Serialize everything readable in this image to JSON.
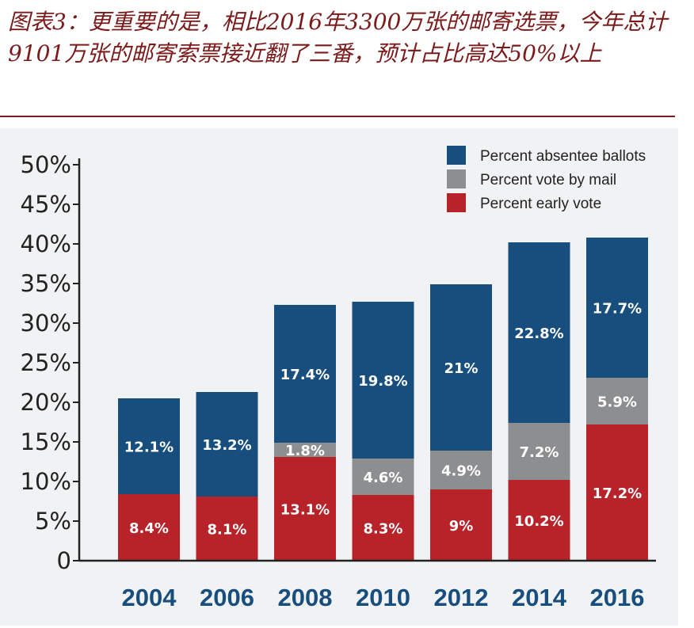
{
  "caption": "图表3：更重要的是，相比2016年3300万张的邮寄选票，今年总计9101万张的邮寄索票接近翻了三番，预计占比高达50%以上",
  "colors": {
    "absentee": "#174e7d",
    "mail": "#8d8e90",
    "early": "#b8232a",
    "axis": "#222222",
    "year": "#174e7d",
    "caption": "#7a1a1a"
  },
  "chart_data": {
    "type": "bar",
    "stacked": true,
    "title": "",
    "xlabel": "",
    "ylabel": "",
    "ylim": [
      0,
      50
    ],
    "yticks": [
      "0",
      "5%",
      "10%",
      "15%",
      "20%",
      "25%",
      "30%",
      "35%",
      "40%",
      "45%",
      "50%"
    ],
    "categories": [
      "2004",
      "2006",
      "2008",
      "2010",
      "2012",
      "2014",
      "2016"
    ],
    "legend_position": "top-right",
    "series": [
      {
        "name": "Percent early vote",
        "color_key": "early",
        "values": [
          8.4,
          8.1,
          13.1,
          8.3,
          9,
          10.2,
          17.2
        ],
        "labels": [
          "8.4%",
          "8.1%",
          "13.1%",
          "8.3%",
          "9%",
          "10.2%",
          "17.2%"
        ]
      },
      {
        "name": "Percent vote by mail",
        "color_key": "mail",
        "values": [
          0,
          0,
          1.8,
          4.6,
          4.9,
          7.2,
          5.9
        ],
        "labels": [
          "",
          "",
          "1.8%",
          "4.6%",
          "4.9%",
          "7.2%",
          "5.9%"
        ]
      },
      {
        "name": "Percent absentee ballots",
        "color_key": "absentee",
        "values": [
          12.1,
          13.2,
          17.4,
          19.8,
          21,
          22.8,
          17.7
        ],
        "labels": [
          "12.1%",
          "13.2%",
          "17.4%",
          "19.8%",
          "21%",
          "22.8%",
          "17.7%"
        ]
      }
    ],
    "legend": [
      {
        "label": "Percent absentee ballots",
        "color_key": "absentee"
      },
      {
        "label": "Percent vote by mail",
        "color_key": "mail"
      },
      {
        "label": "Percent early vote",
        "color_key": "early"
      }
    ]
  }
}
